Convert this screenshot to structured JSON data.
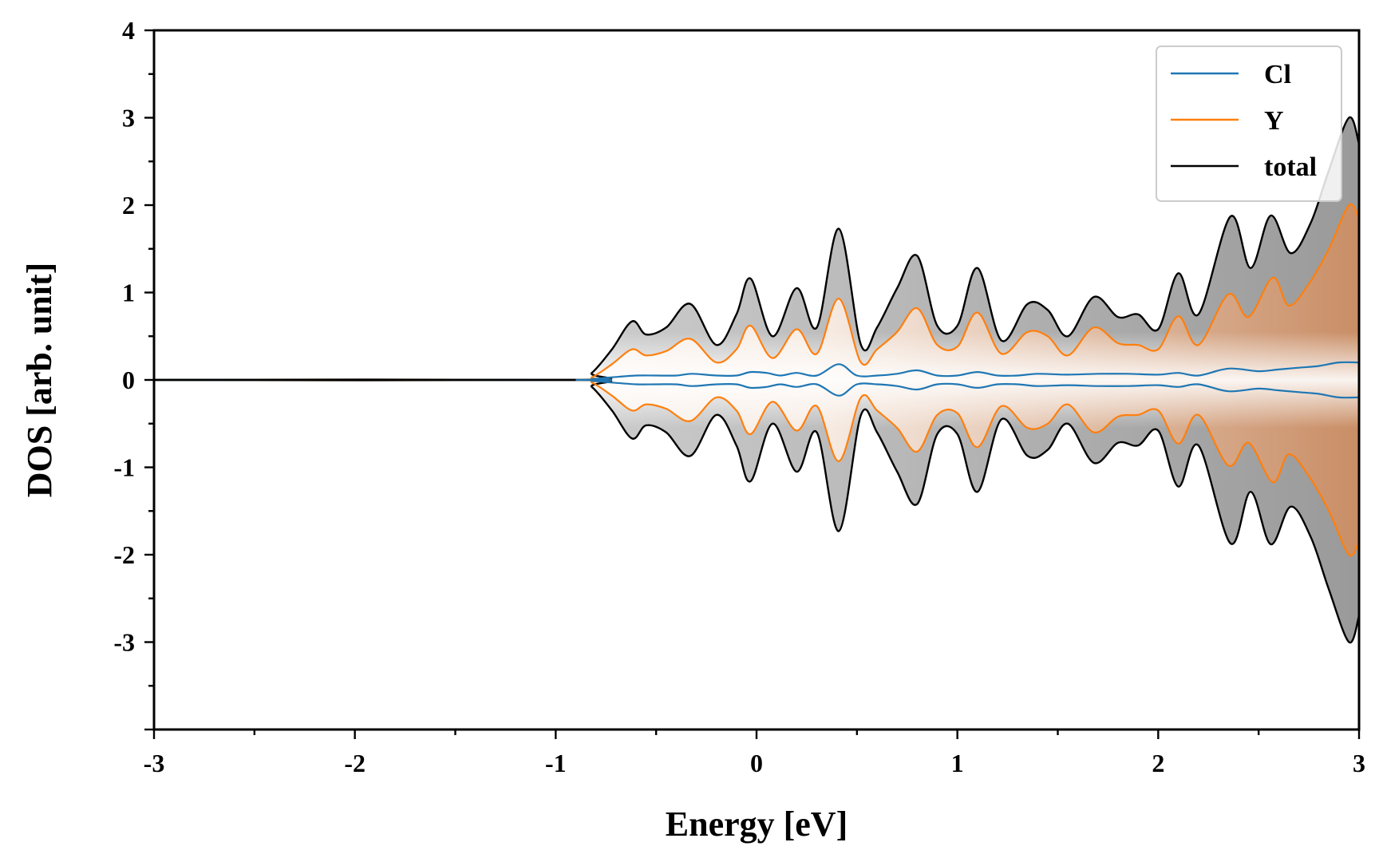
{
  "chart_data": {
    "type": "line",
    "title": "",
    "xlabel": "Energy [eV]",
    "ylabel": "DOS [arb. unit]",
    "xlim": [
      -3,
      3
    ],
    "ylim": [
      -4,
      4
    ],
    "xticks": [
      -3,
      -2,
      -1,
      0,
      1,
      2,
      3
    ],
    "xtick_labels": [
      "-3",
      "-2",
      "-1",
      "0",
      "1",
      "2",
      "3"
    ],
    "yticks": [
      -3,
      -2,
      -1,
      0,
      1,
      2,
      3,
      4
    ],
    "ytick_labels": [
      "-3",
      "-2",
      "-1",
      "0",
      "1",
      "2",
      "3",
      "4"
    ],
    "grid": false,
    "legend": {
      "position": "top-right"
    },
    "mirrored_spin": true,
    "fill": {
      "total": "gray gradient",
      "Y": "orange gradient"
    },
    "series": [
      {
        "name": "Cl",
        "color": "#1f77b4",
        "x": [
          -3.0,
          -0.9,
          -0.82,
          -0.72,
          -0.6,
          -0.5,
          -0.4,
          -0.32,
          -0.2,
          -0.1,
          -0.03,
          0.05,
          0.12,
          0.2,
          0.3,
          0.41,
          0.5,
          0.6,
          0.7,
          0.8,
          0.9,
          1.0,
          1.1,
          1.2,
          1.3,
          1.4,
          1.55,
          1.7,
          1.85,
          2.0,
          2.1,
          2.2,
          2.35,
          2.5,
          2.6,
          2.7,
          2.8,
          2.9,
          3.0
        ],
        "y": [
          0.0,
          0.0,
          0.01,
          0.03,
          0.05,
          0.05,
          0.05,
          0.07,
          0.05,
          0.05,
          0.09,
          0.08,
          0.05,
          0.08,
          0.05,
          0.18,
          0.05,
          0.05,
          0.07,
          0.11,
          0.05,
          0.05,
          0.09,
          0.05,
          0.05,
          0.07,
          0.06,
          0.07,
          0.07,
          0.06,
          0.08,
          0.05,
          0.13,
          0.1,
          0.12,
          0.14,
          0.16,
          0.2,
          0.2
        ]
      },
      {
        "name": "Y",
        "color": "#ff7f0e",
        "x": [
          -3.0,
          -0.9,
          -0.82,
          -0.72,
          -0.62,
          -0.55,
          -0.45,
          -0.33,
          -0.2,
          -0.1,
          -0.03,
          0.08,
          0.2,
          0.3,
          0.41,
          0.52,
          0.6,
          0.7,
          0.8,
          0.9,
          1.0,
          1.1,
          1.22,
          1.35,
          1.45,
          1.55,
          1.68,
          1.8,
          1.9,
          2.0,
          2.1,
          2.2,
          2.35,
          2.45,
          2.57,
          2.65,
          2.75,
          2.85,
          2.95,
          3.0
        ],
        "y": [
          0.0,
          0.0,
          0.03,
          0.18,
          0.35,
          0.28,
          0.33,
          0.47,
          0.2,
          0.35,
          0.62,
          0.25,
          0.58,
          0.3,
          0.93,
          0.2,
          0.35,
          0.55,
          0.82,
          0.4,
          0.38,
          0.77,
          0.3,
          0.55,
          0.5,
          0.28,
          0.6,
          0.42,
          0.4,
          0.35,
          0.73,
          0.4,
          0.98,
          0.72,
          1.17,
          0.85,
          1.1,
          1.5,
          2.0,
          1.85
        ]
      },
      {
        "name": "total",
        "color": "#000000",
        "x": [
          -3.0,
          -0.9,
          -0.82,
          -0.72,
          -0.62,
          -0.55,
          -0.45,
          -0.33,
          -0.2,
          -0.1,
          -0.03,
          0.08,
          0.2,
          0.3,
          0.41,
          0.52,
          0.6,
          0.7,
          0.8,
          0.9,
          1.0,
          1.1,
          1.22,
          1.35,
          1.45,
          1.55,
          1.68,
          1.8,
          1.9,
          2.0,
          2.1,
          2.2,
          2.36,
          2.46,
          2.56,
          2.66,
          2.76,
          2.85,
          2.95,
          3.0
        ],
        "y": [
          0.0,
          0.0,
          0.08,
          0.35,
          0.67,
          0.52,
          0.6,
          0.87,
          0.4,
          0.75,
          1.16,
          0.5,
          1.05,
          0.6,
          1.73,
          0.4,
          0.6,
          1.05,
          1.42,
          0.62,
          0.62,
          1.28,
          0.45,
          0.87,
          0.8,
          0.5,
          0.95,
          0.72,
          0.75,
          0.58,
          1.22,
          0.75,
          1.87,
          1.28,
          1.88,
          1.45,
          1.8,
          2.4,
          3.0,
          2.7
        ]
      }
    ]
  }
}
